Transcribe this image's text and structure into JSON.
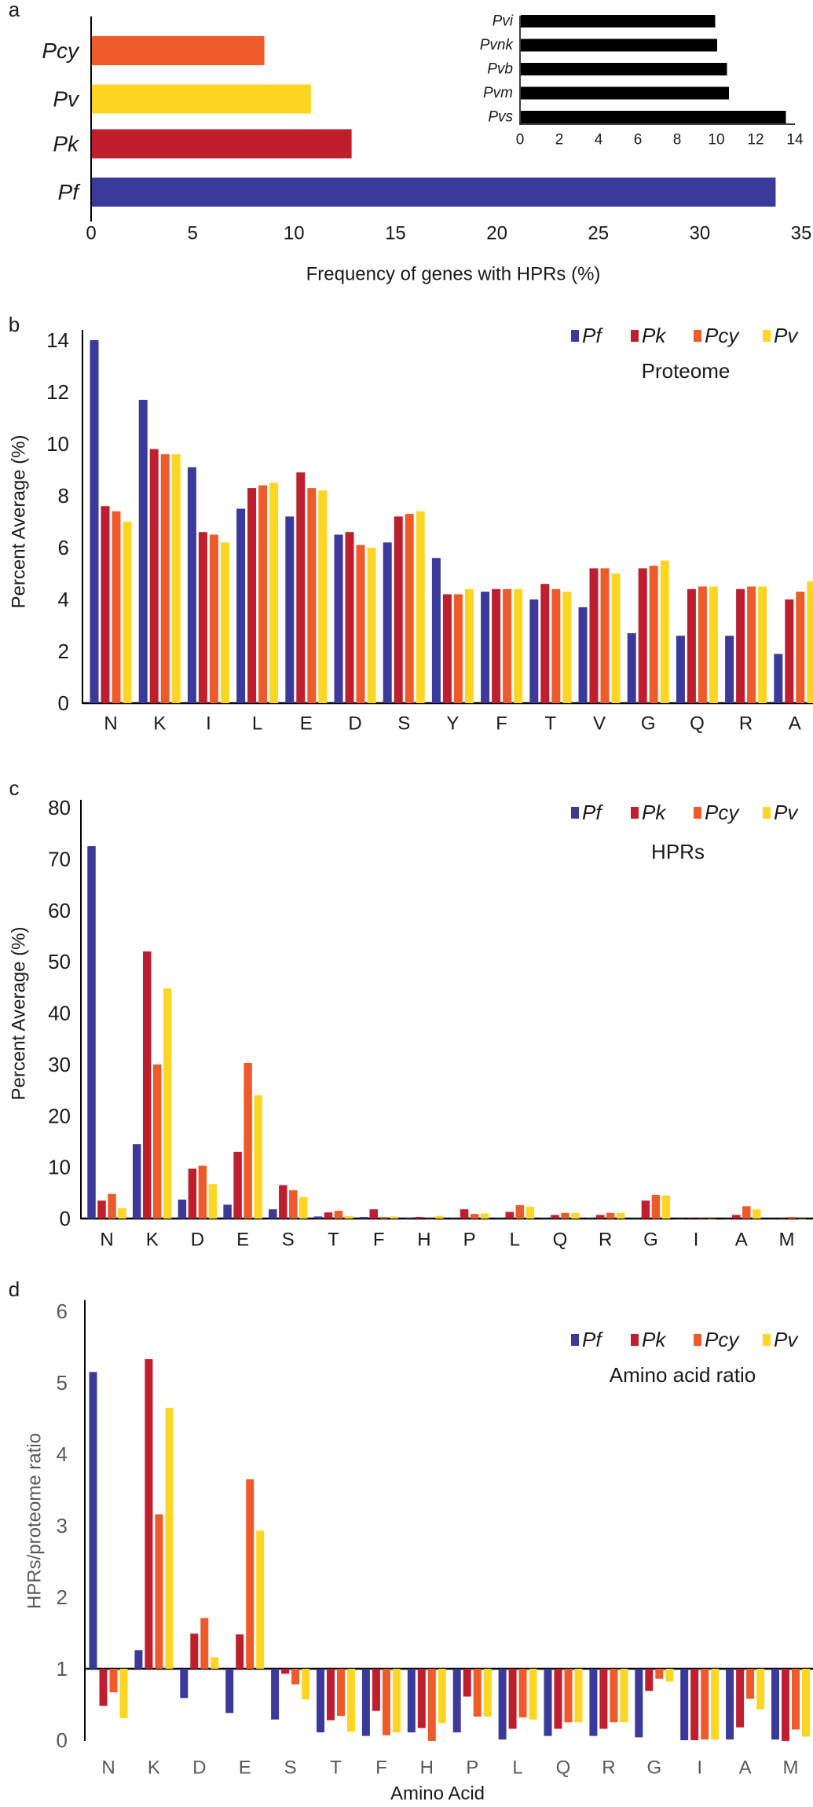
{
  "colors": {
    "Pf": "#3b3a9b",
    "Pk": "#be1e2d",
    "Pcy": "#ef5a2a",
    "Pv": "#fcd622",
    "inset": "#000000"
  },
  "chart_data": [
    {
      "type": "bar",
      "orientation": "horizontal",
      "panel_label": "a",
      "categories": [
        "Pcy",
        "Pv",
        "Pk",
        "Pf"
      ],
      "values": [
        8.5,
        10.8,
        12.8,
        33.7
      ],
      "xlabel": "Frequency of genes with HPRs (%)",
      "xlim": [
        0,
        35
      ],
      "xticks": [
        "0",
        "5",
        "10",
        "15",
        "20",
        "25",
        "30",
        "35"
      ],
      "inset": {
        "type": "bar",
        "orientation": "horizontal",
        "categories": [
          "Pvi",
          "Pvnk",
          "Pvb",
          "Pvm",
          "Pvs"
        ],
        "values": [
          9.9,
          10.0,
          10.5,
          10.6,
          13.5
        ],
        "xlim": [
          0,
          14
        ],
        "xticks": [
          "0",
          "2",
          "4",
          "6",
          "8",
          "10",
          "12",
          "14"
        ]
      }
    },
    {
      "type": "bar",
      "panel_label": "b",
      "title": "Proteome",
      "ylabel": "Percent Average (%)",
      "ylim": [
        0,
        14
      ],
      "yticks": [
        "0",
        "2",
        "4",
        "6",
        "8",
        "10",
        "12",
        "14"
      ],
      "legend": [
        "Pf",
        "Pk",
        "Pcy",
        "Pv"
      ],
      "legend_position": "top-right",
      "categories": [
        "N",
        "K",
        "I",
        "L",
        "E",
        "D",
        "S",
        "Y",
        "F",
        "T",
        "V",
        "G",
        "Q",
        "R",
        "A"
      ],
      "series": [
        {
          "name": "Pf",
          "values": [
            14.0,
            11.7,
            9.1,
            7.5,
            7.2,
            6.5,
            6.2,
            5.6,
            4.3,
            4.0,
            3.7,
            2.7,
            2.6,
            2.6,
            1.9
          ]
        },
        {
          "name": "Pk",
          "values": [
            7.6,
            9.8,
            6.6,
            8.3,
            8.9,
            6.6,
            7.2,
            4.2,
            4.4,
            4.6,
            5.2,
            5.2,
            4.4,
            4.4,
            4.0
          ]
        },
        {
          "name": "Pcy",
          "values": [
            7.4,
            9.6,
            6.5,
            8.4,
            8.3,
            6.1,
            7.3,
            4.2,
            4.4,
            4.4,
            5.2,
            5.3,
            4.5,
            4.5,
            4.3
          ]
        },
        {
          "name": "Pv",
          "values": [
            7.0,
            9.6,
            6.2,
            8.5,
            8.2,
            6.0,
            7.4,
            4.4,
            4.4,
            4.3,
            5.0,
            5.5,
            4.5,
            4.5,
            4.7
          ]
        }
      ]
    },
    {
      "type": "bar",
      "panel_label": "c",
      "title": "HPRs",
      "ylabel": "Percent Average (%)",
      "ylim": [
        0,
        80
      ],
      "yticks": [
        "0",
        "10",
        "20",
        "30",
        "40",
        "50",
        "60",
        "70",
        "80"
      ],
      "legend": [
        "Pf",
        "Pk",
        "Pcy",
        "Pv"
      ],
      "legend_position": "top-right",
      "categories": [
        "N",
        "K",
        "D",
        "E",
        "S",
        "T",
        "F",
        "H",
        "P",
        "L",
        "Q",
        "R",
        "G",
        "I",
        "A",
        "M"
      ],
      "series": [
        {
          "name": "Pf",
          "values": [
            72.5,
            14.5,
            3.7,
            2.7,
            1.8,
            0.4,
            0.3,
            0.2,
            0.1,
            0.1,
            0.1,
            0.1,
            0.1,
            0,
            0,
            0
          ]
        },
        {
          "name": "Pk",
          "values": [
            3.5,
            52.0,
            9.7,
            13.0,
            6.5,
            1.2,
            1.8,
            0.3,
            1.8,
            1.3,
            0.7,
            0.7,
            3.5,
            0.05,
            0.7,
            0
          ]
        },
        {
          "name": "Pcy",
          "values": [
            4.8,
            30.0,
            10.3,
            30.3,
            5.5,
            1.5,
            0.3,
            0,
            0.9,
            2.6,
            1.1,
            1.1,
            4.6,
            0.05,
            2.4,
            0.3
          ]
        },
        {
          "name": "Pv",
          "values": [
            2.0,
            44.8,
            6.7,
            24.0,
            4.2,
            0.5,
            0.4,
            0.5,
            1.0,
            2.3,
            1.1,
            1.1,
            4.5,
            0,
            1.8,
            0
          ]
        }
      ]
    },
    {
      "type": "bar",
      "panel_label": "d",
      "title": "Amino acid ratio",
      "xlabel": "Amino Acid",
      "ylabel": "HPRs/proteome ratio",
      "ylim": [
        0,
        6
      ],
      "baseline": 1,
      "yticks": [
        "0",
        "1",
        "2",
        "3",
        "4",
        "5",
        "6"
      ],
      "legend": [
        "Pf",
        "Pk",
        "Pcy",
        "Pv"
      ],
      "legend_position": "top-right",
      "categories": [
        "N",
        "K",
        "D",
        "E",
        "S",
        "T",
        "F",
        "H",
        "P",
        "L",
        "Q",
        "R",
        "G",
        "I",
        "A",
        "M"
      ],
      "series": [
        {
          "name": "Pf",
          "values": [
            5.15,
            1.26,
            0.59,
            0.38,
            0.29,
            0.11,
            0.06,
            0.11,
            0.11,
            0.01,
            0.06,
            0.06,
            0.04,
            0.0,
            0.01,
            0.01
          ]
        },
        {
          "name": "Pk",
          "values": [
            0.48,
            5.33,
            1.49,
            1.48,
            0.93,
            0.28,
            0.41,
            0.17,
            0.61,
            0.16,
            0.16,
            0.16,
            0.69,
            0.0,
            0.18,
            -0.01
          ]
        },
        {
          "name": "Pcy",
          "values": [
            0.67,
            3.16,
            1.71,
            3.65,
            0.78,
            0.34,
            0.07,
            -0.01,
            0.33,
            0.32,
            0.25,
            0.25,
            0.86,
            0.01,
            0.58,
            0.15
          ]
        },
        {
          "name": "Pv",
          "values": [
            0.31,
            4.65,
            1.16,
            2.93,
            0.57,
            0.12,
            0.11,
            0.24,
            0.33,
            0.29,
            0.25,
            0.25,
            0.82,
            0.01,
            0.43,
            0.05
          ]
        }
      ]
    }
  ]
}
